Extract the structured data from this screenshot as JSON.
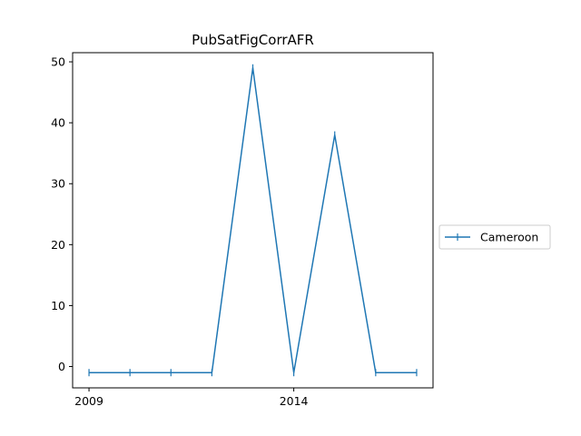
{
  "chart_data": {
    "type": "line",
    "title": "PubSatFigCorrAFR",
    "xlabel": "",
    "ylabel": "",
    "x": [
      2009,
      2010,
      2011,
      2012,
      2013,
      2014,
      2015,
      2016,
      2017
    ],
    "x_ticks": [
      2009,
      2014
    ],
    "x_tick_labels": [
      "2009",
      "2014"
    ],
    "y_ticks": [
      0,
      10,
      20,
      30,
      40,
      50
    ],
    "y_tick_labels": [
      "0",
      "10",
      "20",
      "30",
      "40",
      "50"
    ],
    "xlim": [
      2008.6,
      2017.4
    ],
    "ylim": [
      -3.5,
      51.5
    ],
    "grid": false,
    "legend_position": "right",
    "series": [
      {
        "name": "Cameroon",
        "color": "#1f77b4",
        "marker": "|",
        "values": [
          -1,
          -1,
          -1,
          -1,
          49,
          -1,
          38,
          -1,
          -1
        ]
      }
    ]
  }
}
